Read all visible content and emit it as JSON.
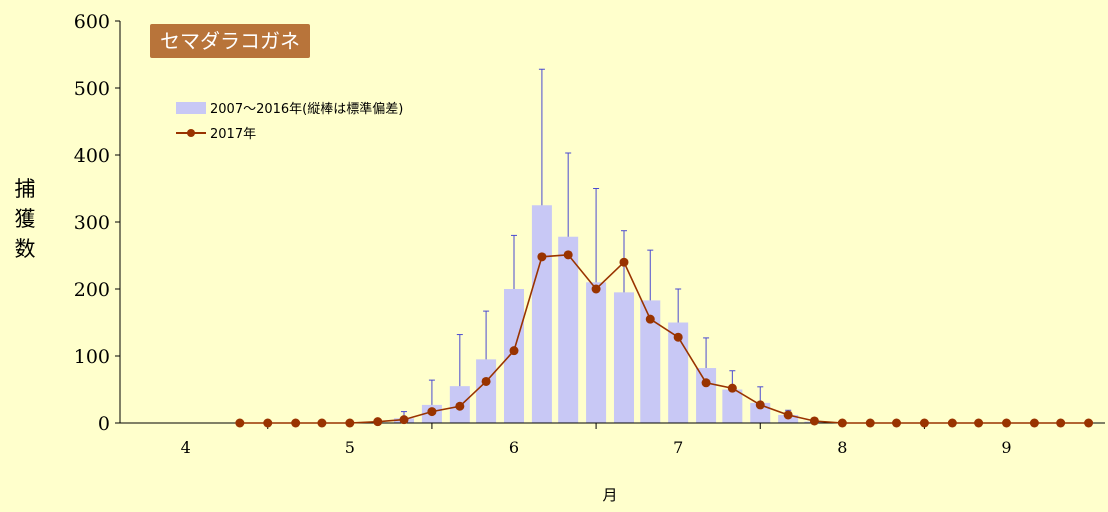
{
  "chart_data": {
    "type": "bar+line",
    "title": "セマダラコガネ",
    "ylabel": "捕獲数",
    "xlabel": "月",
    "ylim": [
      0,
      600
    ],
    "yticks": [
      0,
      100,
      200,
      300,
      400,
      500,
      600
    ],
    "month_labels": [
      "4",
      "5",
      "6",
      "7",
      "8",
      "9"
    ],
    "legend_placement": "top-left",
    "colors": {
      "background": "#ffffcc",
      "bar": "#c8c8f5",
      "error_bar": "#4a4ad0",
      "line": "#993300",
      "title_box": "#b8743a"
    },
    "series": [
      {
        "name": "2007～2016年(縦棒は標準偏差)",
        "kind": "bar",
        "x": [
          5.17,
          5.33,
          5.5,
          5.67,
          5.83,
          6.0,
          6.17,
          6.33,
          6.5,
          6.67,
          6.83,
          7.0,
          7.17,
          7.33,
          7.5,
          7.67,
          7.83
        ],
        "values": [
          1,
          7,
          27,
          55,
          95,
          200,
          325,
          278,
          210,
          195,
          183,
          150,
          82,
          50,
          30,
          12,
          2
        ],
        "error": [
          1,
          10,
          37,
          77,
          72,
          80,
          203,
          125,
          140,
          92,
          75,
          50,
          45,
          28,
          24,
          7,
          2
        ]
      },
      {
        "name": "2017年",
        "kind": "line",
        "x": [
          4.33,
          4.5,
          4.67,
          4.83,
          5.0,
          5.17,
          5.33,
          5.5,
          5.67,
          5.83,
          6.0,
          6.17,
          6.33,
          6.5,
          6.67,
          6.83,
          7.0,
          7.17,
          7.33,
          7.5,
          7.67,
          7.83,
          8.0,
          8.17,
          8.33,
          8.5,
          8.67,
          8.83,
          9.0,
          9.17,
          9.33,
          9.5
        ],
        "values": [
          0,
          0,
          0,
          0,
          0,
          2,
          5,
          17,
          25,
          62,
          108,
          248,
          251,
          200,
          240,
          155,
          128,
          60,
          52,
          27,
          12,
          3,
          0,
          0,
          0,
          0,
          0,
          0,
          0,
          0,
          0,
          0
        ]
      }
    ]
  }
}
